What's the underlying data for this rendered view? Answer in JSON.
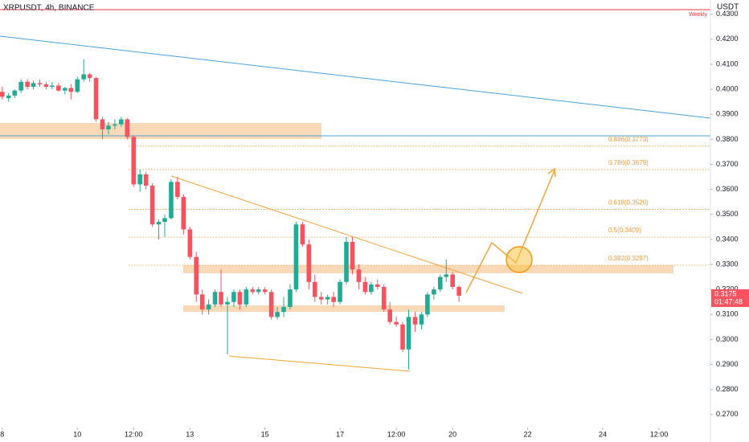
{
  "chart_data": {
    "type": "candlestick",
    "title": "XRPUSDT, 4h, BINANCE",
    "currency": "USDT",
    "weekly_label": "Weekly",
    "countdown": "01:47:48",
    "up_color": "#22ab94",
    "down_color": "#f7525f",
    "x": [
      8,
      8.17,
      8.33,
      8.5,
      8.67,
      8.83,
      9,
      9.17,
      9.33,
      9.5,
      9.67,
      9.83,
      10,
      10.17,
      10.33,
      10.5,
      10.67,
      10.83,
      11,
      11.17,
      11.33,
      11.5,
      11.67,
      11.83,
      12,
      12.17,
      12.33,
      12.5,
      12.67,
      12.83,
      13,
      13.17,
      13.33,
      13.5,
      13.67,
      13.83,
      14,
      14.17,
      14.33,
      14.5,
      14.67,
      14.83,
      15,
      15.17,
      15.33,
      15.5,
      15.67,
      15.83,
      16,
      16.17,
      16.33,
      16.5,
      16.67,
      16.83,
      17,
      17.17,
      17.33,
      17.5,
      17.67,
      17.83,
      18,
      18.17,
      18.33,
      18.5,
      18.67,
      18.83,
      19,
      19.17,
      19.33,
      19.5,
      19.67,
      19.83,
      20,
      20.17
    ],
    "open": [
      0.399,
      0.3965,
      0.3975,
      0.3995,
      0.403,
      0.401,
      0.4025,
      0.402,
      0.401,
      0.4015,
      0.3995,
      0.4005,
      0.399,
      0.404,
      0.406,
      0.4045,
      0.388,
      0.384,
      0.3855,
      0.386,
      0.388,
      0.381,
      0.362,
      0.366,
      0.3615,
      0.346,
      0.347,
      0.3485,
      0.363,
      0.357,
      0.344,
      0.333,
      0.318,
      0.312,
      0.314,
      0.319,
      0.314,
      0.315,
      0.319,
      0.314,
      0.32,
      0.319,
      0.32,
      0.319,
      0.309,
      0.311,
      0.313,
      0.32,
      0.346,
      0.338,
      0.323,
      0.317,
      0.316,
      0.317,
      0.315,
      0.323,
      0.339,
      0.328,
      0.323,
      0.319,
      0.322,
      0.321,
      0.312,
      0.307,
      0.306,
      0.296,
      0.309,
      0.306,
      0.31,
      0.318,
      0.32,
      0.325,
      0.326,
      0.321
    ],
    "high": [
      0.401,
      0.3985,
      0.4,
      0.404,
      0.404,
      0.4035,
      0.404,
      0.403,
      0.403,
      0.4025,
      0.401,
      0.402,
      0.405,
      0.412,
      0.4065,
      0.405,
      0.389,
      0.387,
      0.388,
      0.389,
      0.3885,
      0.3815,
      0.368,
      0.367,
      0.3625,
      0.348,
      0.35,
      0.364,
      0.365,
      0.358,
      0.345,
      0.335,
      0.32,
      0.316,
      0.32,
      0.328,
      0.317,
      0.32,
      0.32,
      0.321,
      0.321,
      0.321,
      0.321,
      0.32,
      0.313,
      0.317,
      0.322,
      0.347,
      0.347,
      0.34,
      0.326,
      0.319,
      0.318,
      0.319,
      0.324,
      0.341,
      0.341,
      0.33,
      0.325,
      0.323,
      0.324,
      0.322,
      0.315,
      0.309,
      0.307,
      0.312,
      0.311,
      0.311,
      0.319,
      0.321,
      0.326,
      0.332,
      0.327,
      0.3215
    ],
    "low": [
      0.396,
      0.395,
      0.3965,
      0.3985,
      0.4,
      0.4,
      0.401,
      0.4,
      0.4,
      0.399,
      0.398,
      0.396,
      0.3985,
      0.403,
      0.403,
      0.387,
      0.38,
      0.382,
      0.384,
      0.385,
      0.38,
      0.361,
      0.359,
      0.36,
      0.345,
      0.34,
      0.341,
      0.348,
      0.356,
      0.342,
      0.332,
      0.315,
      0.31,
      0.31,
      0.313,
      0.313,
      0.294,
      0.313,
      0.312,
      0.313,
      0.318,
      0.318,
      0.318,
      0.308,
      0.308,
      0.309,
      0.312,
      0.319,
      0.337,
      0.32,
      0.315,
      0.314,
      0.314,
      0.313,
      0.314,
      0.322,
      0.326,
      0.32,
      0.318,
      0.318,
      0.32,
      0.311,
      0.306,
      0.305,
      0.295,
      0.288,
      0.303,
      0.304,
      0.309,
      0.316,
      0.319,
      0.323,
      0.32,
      0.315
    ],
    "close": [
      0.397,
      0.3975,
      0.3995,
      0.403,
      0.401,
      0.4025,
      0.402,
      0.401,
      0.4015,
      0.3995,
      0.4005,
      0.399,
      0.404,
      0.406,
      0.4045,
      0.388,
      0.384,
      0.3855,
      0.386,
      0.388,
      0.381,
      0.362,
      0.366,
      0.3615,
      0.346,
      0.347,
      0.3485,
      0.363,
      0.357,
      0.344,
      0.333,
      0.318,
      0.312,
      0.314,
      0.319,
      0.314,
      0.315,
      0.319,
      0.314,
      0.32,
      0.319,
      0.32,
      0.319,
      0.309,
      0.311,
      0.313,
      0.32,
      0.346,
      0.338,
      0.323,
      0.317,
      0.316,
      0.317,
      0.315,
      0.323,
      0.339,
      0.328,
      0.323,
      0.319,
      0.322,
      0.321,
      0.312,
      0.307,
      0.306,
      0.296,
      0.309,
      0.306,
      0.31,
      0.318,
      0.32,
      0.325,
      0.326,
      0.321,
      0.3175
    ],
    "fib_levels": [
      {
        "value": 0.3773,
        "label": "0.886(0.3773)"
      },
      {
        "value": 0.3679,
        "label": "0.786(0.3679)"
      },
      {
        "value": 0.352,
        "label": "0.618(0.3520)"
      },
      {
        "value": 0.3409,
        "label": "0.5(0.3409)"
      },
      {
        "value": 0.3297,
        "label": "0.382(0.3297)"
      }
    ],
    "fib_color": "#f59a3a",
    "xlim": [
      7.94,
      26.87
    ],
    "xticks": [
      8,
      10,
      {
        "value": 11.5,
        "label": "12:00"
      },
      13,
      15,
      17,
      {
        "value": 18.5,
        "label": "12:00"
      },
      20,
      22,
      24,
      {
        "value": 25.5,
        "label": "12:00"
      }
    ],
    "ylim": [
      0.2648,
      0.4357
    ],
    "yticks": [
      {
        "value": 0.27,
        "label": "0.2700"
      },
      {
        "value": 0.28,
        "label": "0.2800"
      },
      {
        "value": 0.29,
        "label": "0.2900"
      },
      {
        "value": 0.3,
        "label": "0.3000"
      },
      {
        "value": 0.31,
        "label": "0.3100"
      },
      {
        "value": 0.32,
        "label": "0.3200"
      },
      {
        "value": 0.33,
        "label": "0.3300"
      },
      {
        "value": 0.34,
        "label": "0.3400"
      },
      {
        "value": 0.35,
        "label": "0.3500"
      },
      {
        "value": 0.36,
        "label": "0.3600"
      },
      {
        "value": 0.37,
        "label": "0.3700"
      },
      {
        "value": 0.38,
        "label": "0.3800"
      },
      {
        "value": 0.39,
        "label": "0.3900"
      },
      {
        "value": 0.4,
        "label": "0.4000"
      },
      {
        "value": 0.41,
        "label": "0.4100"
      },
      {
        "value": 0.42,
        "label": "0.4200"
      },
      {
        "value": 0.43,
        "label": "0.4300"
      }
    ]
  }
}
